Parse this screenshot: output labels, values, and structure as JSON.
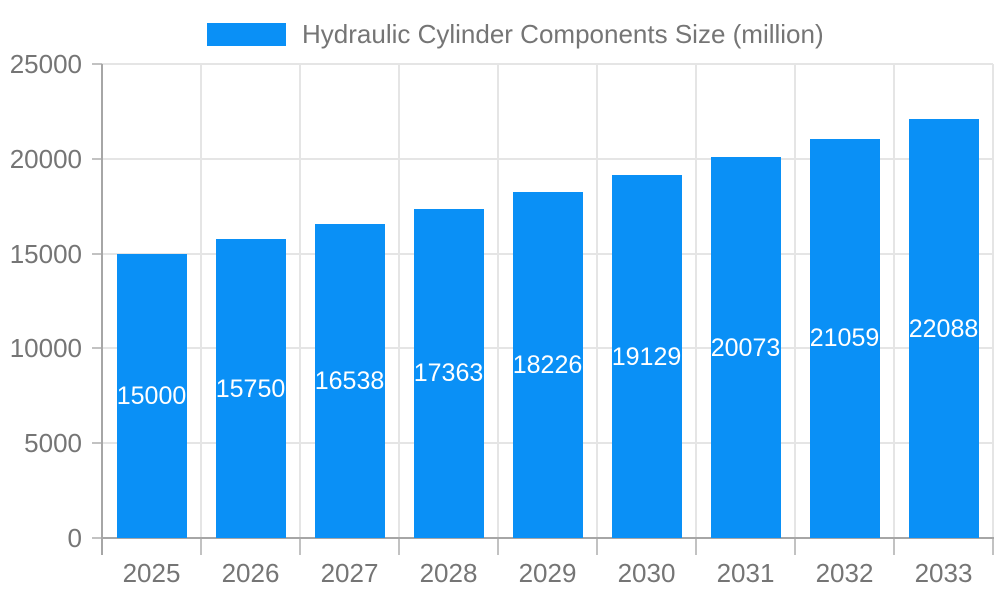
{
  "legend": {
    "label": "Hydraulic Cylinder Components Size (million)",
    "swatch_color": "#0a90f6"
  },
  "chart_data": {
    "type": "bar",
    "title": "Hydraulic Cylinder Components Size (million)",
    "categories": [
      "2025",
      "2026",
      "2027",
      "2028",
      "2029",
      "2030",
      "2031",
      "2032",
      "2033"
    ],
    "series": [
      {
        "name": "Hydraulic Cylinder Components Size (million)",
        "values": [
          15000,
          15750,
          16538,
          17363,
          18226,
          19129,
          20073,
          21059,
          22088
        ]
      }
    ],
    "value_labels": [
      "15000",
      "15750",
      "16538",
      "17363",
      "18226",
      "19129",
      "20073",
      "21059",
      "22088"
    ],
    "xlabel": "",
    "ylabel": "",
    "ylim": [
      0,
      25000
    ],
    "y_ticks": [
      0,
      5000,
      10000,
      15000,
      20000,
      25000
    ],
    "grid": true,
    "legend_position": "top",
    "colors": {
      "bar": "#0a90f6",
      "grid": "#e5e5e5",
      "axis": "#a6a6a6",
      "tick_mark": "#c2c2c2",
      "tick_text": "#757575",
      "bar_label": "#ffffff",
      "background": "#ffffff"
    }
  }
}
